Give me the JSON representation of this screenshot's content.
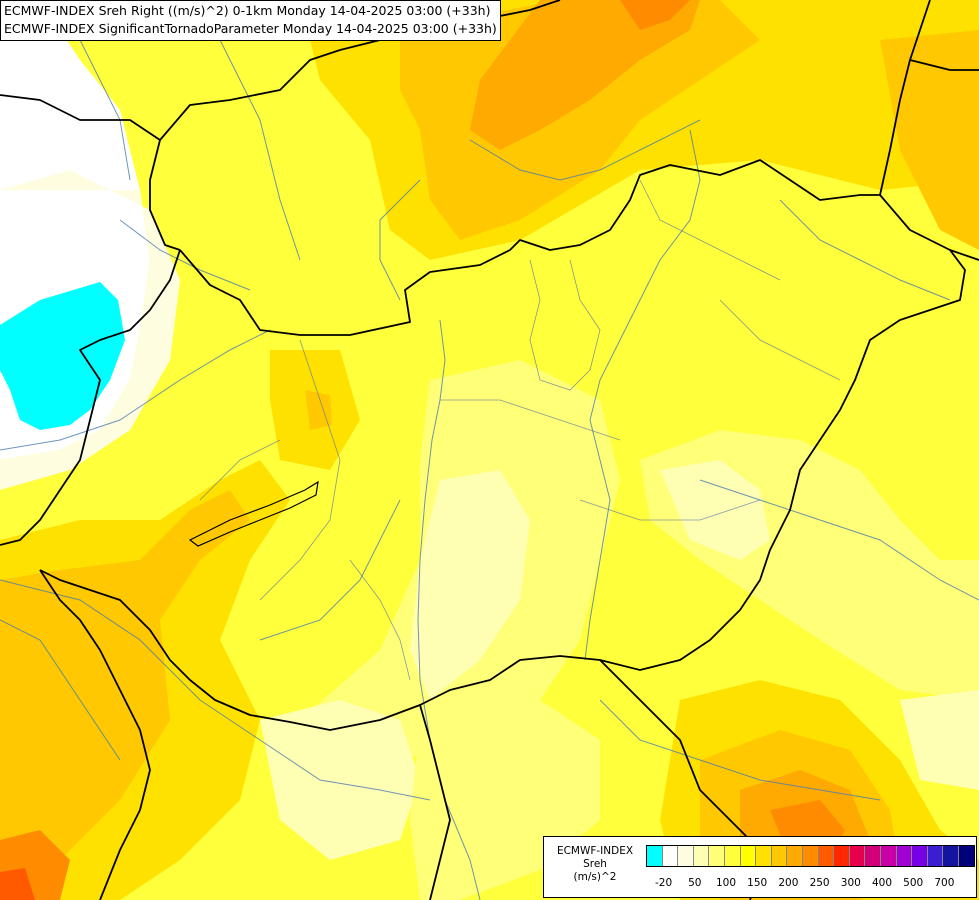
{
  "title": {
    "line1": "ECMWF-INDEX Sreh Right ((m/s)^2) 0-1km Monday 14-04-2025 03:00 (+33h)",
    "line2": "ECMWF-INDEX SignificantTornadoParameter Monday 14-04-2025 03:00 (+33h)"
  },
  "legend": {
    "title_l1": "ECMWF-INDEX",
    "title_l2": "Sreh",
    "title_l3": "(m/s)^2",
    "swatch_colors": [
      "#00ffff",
      "#ffffff",
      "#fffde0",
      "#ffffb4",
      "#ffff78",
      "#ffff3c",
      "#ffff00",
      "#ffe100",
      "#ffc800",
      "#ffaa00",
      "#ff8c00",
      "#ff5a00",
      "#ff2800",
      "#e6004b",
      "#d20078",
      "#c800a5",
      "#a000d2",
      "#7800e6",
      "#3c1ed2",
      "#1414a0",
      "#000078"
    ],
    "tick_labels": [
      "-20",
      "50",
      "100",
      "150",
      "200",
      "250",
      "300",
      "400",
      "500",
      "700"
    ]
  },
  "field_colors": {
    "below_zero": "#00ffff",
    "near_zero": "#ffffff",
    "low": "#fffde0",
    "light": "#ffffb4",
    "pale": "#ffff78",
    "mid": "#ffff3c",
    "yellow": "#ffff00",
    "amber": "#ffe100",
    "orange_light": "#ffc800",
    "orange": "#ffaa00",
    "orange_dark": "#ff8c00",
    "red_orange": "#ff5a00"
  }
}
